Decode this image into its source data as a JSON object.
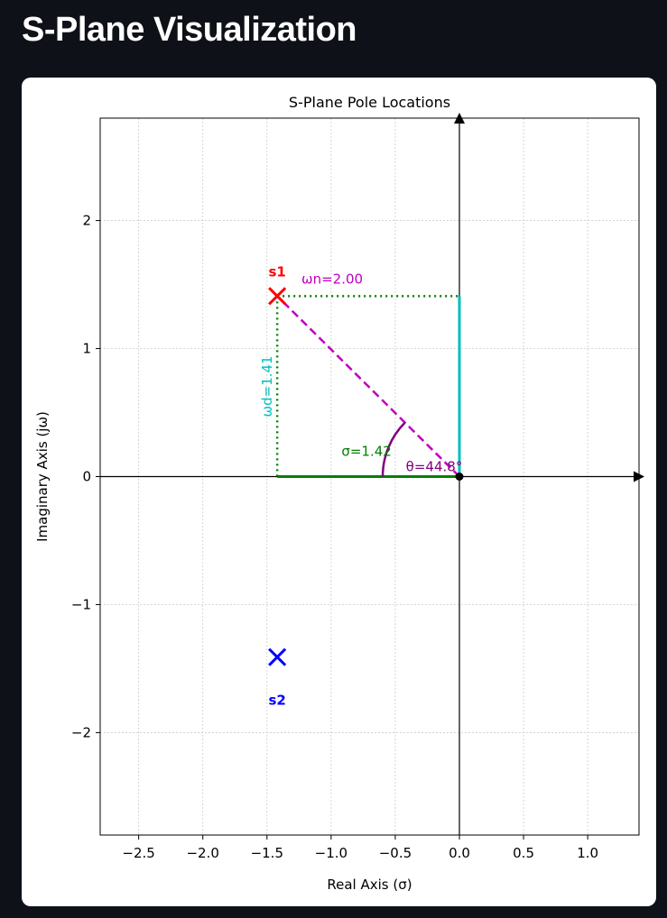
{
  "page": {
    "title": "S-Plane Visualization"
  },
  "chart_data": {
    "type": "scatter",
    "title": "S-Plane Pole Locations",
    "xlabel": "Real Axis (σ)",
    "ylabel": "Imaginary Axis (jω)",
    "xlim": [
      -2.8,
      1.4
    ],
    "ylim": [
      -2.8,
      2.8
    ],
    "xticks": [
      -2.5,
      -2.0,
      -1.5,
      -1.0,
      -0.5,
      0.0,
      0.5,
      1.0
    ],
    "xtick_labels": [
      "−2.5",
      "−2.0",
      "−1.5",
      "−1.0",
      "−0.5",
      "0.0",
      "0.5",
      "1.0"
    ],
    "yticks": [
      -2,
      -1,
      0,
      1,
      2
    ],
    "ytick_labels": [
      "−2",
      "−1",
      "0",
      "1",
      "2"
    ],
    "grid": true,
    "poles": [
      {
        "label": "s1",
        "x": -1.42,
        "y": 1.41,
        "color": "#ff0000"
      },
      {
        "label": "s2",
        "x": -1.42,
        "y": -1.41,
        "color": "#0000ff"
      }
    ],
    "origin": {
      "x": 0,
      "y": 0
    },
    "annotations": {
      "omega_n": {
        "text": "ωn=2.00",
        "value": 2.0,
        "color": "#bf00bf"
      },
      "omega_d": {
        "text": "ωd=1.41",
        "value": 1.41,
        "color": "#00bfbf"
      },
      "sigma": {
        "text": "σ=1.42",
        "value": 1.42,
        "color": "#008000"
      },
      "theta": {
        "text": "θ=44.8°",
        "value": 44.8,
        "color": "#800080"
      }
    },
    "colors": {
      "grid": "#cccccc",
      "axes": "#000000",
      "sigma_line": "#008000",
      "omega_d_line": "#00bfbf",
      "omega_n_line": "#bf00bf",
      "dotted_lines": "#008000",
      "theta_arc": "#800080"
    }
  }
}
